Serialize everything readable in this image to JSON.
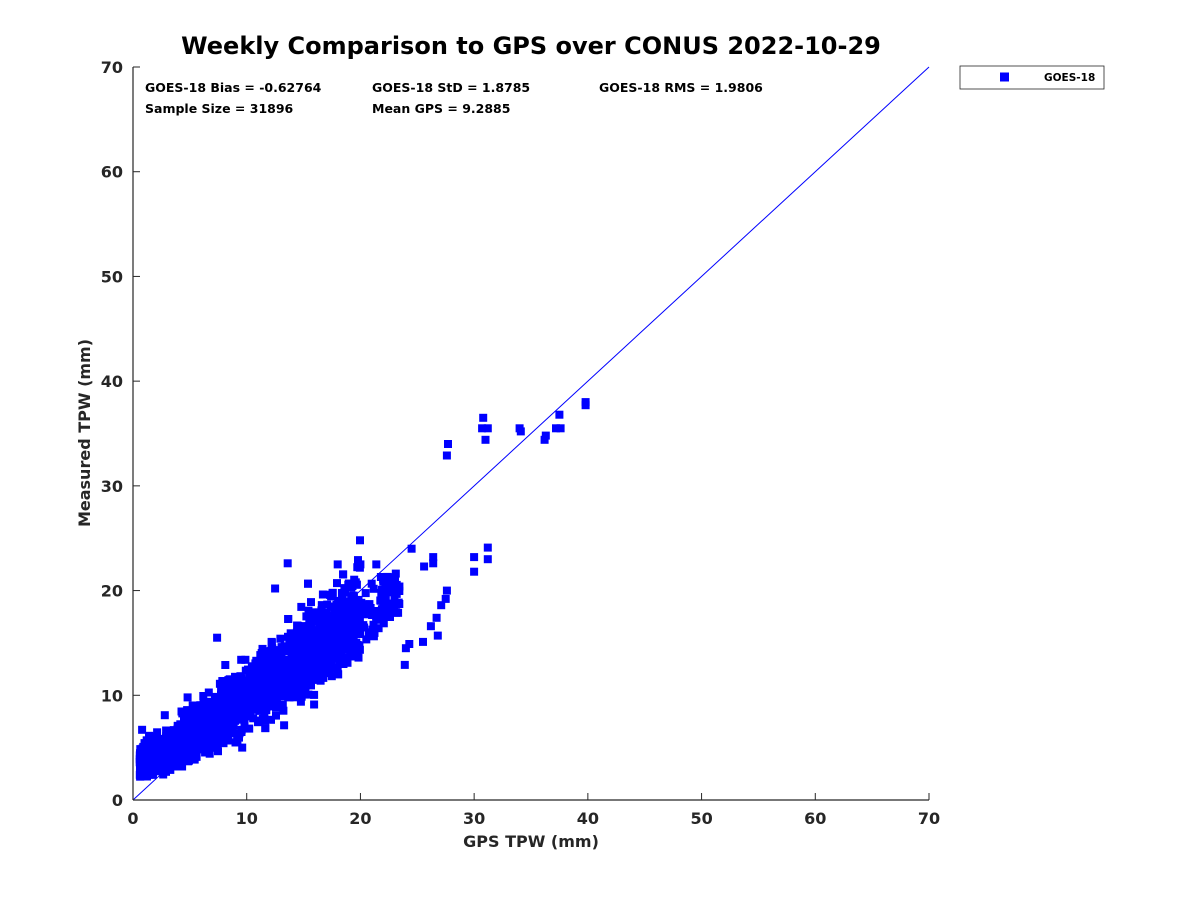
{
  "chart_data": {
    "type": "scatter",
    "title": "Weekly Comparison to GPS over CONUS 2022-10-29",
    "xlabel": "GPS TPW (mm)",
    "ylabel": "Measured TPW (mm)",
    "xlim": [
      0,
      70
    ],
    "ylim": [
      0,
      70
    ],
    "xticks": [
      "0",
      "10",
      "20",
      "30",
      "40",
      "50",
      "60",
      "70"
    ],
    "yticks": [
      "0",
      "10",
      "20",
      "30",
      "40",
      "50",
      "60",
      "70"
    ],
    "grid": false,
    "legend_position": "outside-top-right",
    "marker_color": "#0000ff",
    "reference_line": {
      "label": "1:1",
      "x": [
        0,
        70
      ],
      "y": [
        0,
        70
      ],
      "color": "#0000ff"
    },
    "stats": [
      {
        "label": "GOES-18 Bias = -0.62764"
      },
      {
        "label": "GOES-18 StD = 1.8785"
      },
      {
        "label": "GOES-18 RMS = 1.9806"
      },
      {
        "label": "Sample Size = 31896"
      },
      {
        "label": "Mean GPS = 9.2885"
      }
    ],
    "series": [
      {
        "name": "GOES-18",
        "color": "#0000ff",
        "marker": "square",
        "approximate_density": {
          "description": "Dense cloud of 31896 points; representative sampled outliers below",
          "core_x_range": [
            0.5,
            20
          ],
          "core_y_range": [
            2,
            20
          ]
        },
        "points": [
          [
            30.8,
            36.5
          ],
          [
            30.7,
            35.5
          ],
          [
            31.2,
            35.5
          ],
          [
            31.0,
            34.4
          ],
          [
            34.0,
            35.5
          ],
          [
            34.1,
            35.2
          ],
          [
            36.3,
            34.8
          ],
          [
            36.2,
            34.4
          ],
          [
            37.5,
            36.8
          ],
          [
            37.6,
            35.5
          ],
          [
            37.2,
            35.5
          ],
          [
            39.8,
            38.0
          ],
          [
            39.8,
            37.7
          ],
          [
            27.7,
            34.0
          ],
          [
            27.6,
            32.9
          ],
          [
            31.2,
            24.1
          ],
          [
            31.2,
            23.0
          ],
          [
            30.0,
            23.2
          ],
          [
            30.0,
            21.8
          ],
          [
            24.5,
            24.0
          ],
          [
            26.4,
            23.2
          ],
          [
            26.4,
            22.6
          ],
          [
            25.6,
            22.3
          ],
          [
            27.6,
            20.0
          ],
          [
            27.5,
            19.2
          ],
          [
            27.1,
            18.6
          ],
          [
            26.7,
            17.4
          ],
          [
            24.3,
            14.9
          ],
          [
            24.0,
            14.5
          ],
          [
            23.9,
            12.9
          ],
          [
            25.5,
            15.1
          ],
          [
            26.2,
            16.6
          ],
          [
            26.8,
            15.7
          ],
          [
            23.0,
            18.2
          ],
          [
            21.8,
            21.3
          ],
          [
            21.4,
            22.5
          ],
          [
            20.0,
            22.5
          ],
          [
            18.0,
            22.5
          ],
          [
            13.6,
            22.6
          ],
          [
            12.5,
            20.2
          ],
          [
            0.8,
            6.7
          ],
          [
            2.8,
            8.1
          ],
          [
            7.4,
            15.5
          ],
          [
            4.8,
            9.8
          ],
          [
            9.6,
            5.0
          ]
        ]
      }
    ]
  }
}
